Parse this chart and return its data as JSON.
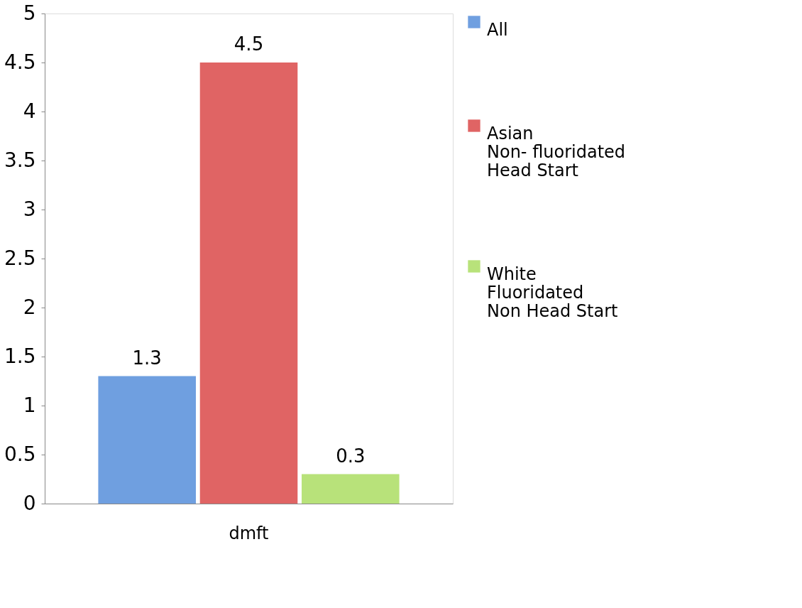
{
  "chart_data": {
    "type": "bar",
    "categories": [
      "dmft"
    ],
    "series": [
      {
        "name": "All",
        "color": "#6f9fe0",
        "values": [
          1.3
        ]
      },
      {
        "name": "Asian\nNon- fluoridated\nHead Start",
        "color": "#e06464",
        "values": [
          4.5
        ]
      },
      {
        "name": "White\nFluoridated\nNon Head Start",
        "color": "#b8e27a",
        "values": [
          0.3
        ]
      }
    ],
    "ylim": [
      0,
      5
    ],
    "yticks": [
      0,
      0.5,
      1,
      1.5,
      2,
      2.5,
      3,
      3.5,
      4,
      4.5,
      5
    ],
    "grid": false,
    "legend": "right",
    "data_labels": true
  }
}
